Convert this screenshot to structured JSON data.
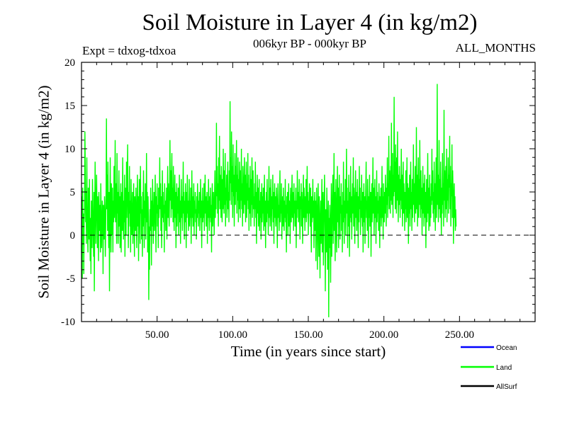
{
  "chart_data": {
    "type": "line",
    "title": "Soil Moisture in Layer 4 (in kg/m2)",
    "subtitle": "006kyr BP - 000kyr BP",
    "experiment": "Expt = tdxog-tdxoa",
    "period": "ALL_MONTHS",
    "xlabel": "Time (in years since start)",
    "ylabel": "Soil Moisture in Layer 4 (in kg/m2)",
    "xlim": [
      0,
      300
    ],
    "ylim": [
      -10,
      20
    ],
    "x_ticks": [
      {
        "value": 50,
        "label": "50.00"
      },
      {
        "value": 100,
        "label": "100.00"
      },
      {
        "value": 150,
        "label": "150.00"
      },
      {
        "value": 200,
        "label": "200.00"
      },
      {
        "value": 250,
        "label": "250.00"
      }
    ],
    "y_ticks": [
      {
        "value": -10,
        "label": "-10"
      },
      {
        "value": -5,
        "label": "-5"
      },
      {
        "value": 0,
        "label": "0"
      },
      {
        "value": 5,
        "label": "5"
      },
      {
        "value": 10,
        "label": "10"
      },
      {
        "value": 15,
        "label": "15"
      },
      {
        "value": 20,
        "label": "20"
      }
    ],
    "zero_line": true,
    "legend_position": "bottom-right",
    "series": [
      {
        "name": "Ocean",
        "color": "#0000ff",
        "values": []
      },
      {
        "name": "Land",
        "color": "#00ff00",
        "x_start": 0,
        "x_step": 0.25,
        "values": [
          -2.0,
          4.5,
          -5.0,
          5.5,
          -1.0,
          2.5,
          -4.5,
          1.5,
          3.0,
          12.0,
          8.0,
          1.5,
          5.0,
          -1.0,
          9.0,
          3.5,
          0.5,
          -2.0,
          5.5,
          2.0,
          -0.5,
          6.5,
          1.0,
          -3.0,
          2.0,
          -4.5,
          4.0,
          1.5,
          -1.5,
          6.5,
          3.0,
          0.0,
          -2.5,
          5.0,
          -6.5,
          2.0,
          8.5,
          4.0,
          -1.0,
          3.5,
          7.0,
          2.5,
          -1.5,
          4.5,
          1.0,
          -3.0,
          5.0,
          2.0,
          0.5,
          3.5,
          -2.0,
          6.0,
          2.5,
          -1.5,
          1.5,
          4.0,
          2.0,
          -4.5,
          3.5,
          1.0,
          -0.5,
          4.5,
          2.5,
          -2.5,
          1.0,
          5.5,
          13.5,
          3.0,
          7.0,
          0.5,
          8.5,
          2.0,
          -1.5,
          5.0,
          -6.5,
          2.5,
          9.0,
          1.0,
          -2.0,
          6.0,
          3.5,
          0.0,
          5.5,
          -2.0,
          4.0,
          1.5,
          8.0,
          2.0,
          4.0,
          11.0,
          1.5,
          6.0,
          3.5,
          -1.0,
          9.5,
          2.5,
          5.0,
          -1.0,
          3.0,
          7.5,
          1.0,
          4.5,
          -1.5,
          3.5,
          6.0,
          -2.0,
          2.5,
          5.0,
          0.5,
          9.0,
          3.0,
          -0.5,
          4.0,
          1.5,
          7.0,
          -2.5,
          3.5,
          5.5,
          0.0,
          8.5,
          2.0,
          6.0,
          10.5,
          3.0,
          -1.5,
          5.0,
          2.5,
          8.0,
          1.0,
          4.0,
          -2.0,
          6.5,
          3.5,
          0.0,
          2.0,
          5.0,
          -1.0,
          3.5,
          6.0,
          1.5,
          -2.5,
          4.5,
          2.0,
          0.5,
          5.5,
          2.0,
          -1.5,
          3.5,
          7.0,
          1.0,
          4.5,
          -3.0,
          2.0,
          6.5,
          3.0,
          -1.0,
          8.0,
          2.5,
          4.5,
          -0.5,
          3.0,
          -2.5,
          5.0,
          1.0,
          7.5,
          3.5,
          -1.5,
          4.0,
          2.0,
          6.0,
          -0.5,
          3.0,
          9.5,
          1.5,
          5.0,
          -2.0,
          4.5,
          2.0,
          -7.5,
          1.0,
          -4.0,
          3.0,
          0.5,
          5.5,
          2.5,
          -3.5,
          4.0,
          1.0,
          6.5,
          3.0,
          -1.0,
          2.0,
          5.0,
          0.5,
          3.5,
          7.0,
          1.5,
          -2.0,
          4.5,
          2.5,
          6.0,
          1.0,
          3.5,
          -1.5,
          5.5,
          2.0,
          4.0,
          9.0,
          3.0,
          6.0,
          0.5,
          4.5,
          -1.5,
          3.0,
          7.5,
          2.0,
          5.0,
          1.5,
          3.5,
          -2.0,
          6.0,
          2.5,
          4.0,
          0.5,
          3.0,
          5.5,
          -0.5,
          4.0,
          8.0,
          2.0,
          6.0,
          3.5,
          1.0,
          5.0,
          11.0,
          4.0,
          7.5,
          2.0,
          6.0,
          9.5,
          3.0,
          5.5,
          1.5,
          8.0,
          3.5,
          0.5,
          4.5,
          7.0,
          2.0,
          5.0,
          -1.5,
          3.0,
          6.0,
          1.0,
          4.5,
          2.5,
          5.5,
          0.0,
          3.0,
          7.0,
          1.5,
          4.0,
          -1.0,
          3.5,
          6.5,
          2.0,
          4.5,
          0.5,
          3.0,
          8.5,
          2.5,
          5.0,
          -0.5,
          4.0,
          1.5,
          6.0,
          3.0,
          -1.5,
          5.0,
          2.0,
          7.0,
          2.5,
          4.0,
          0.5,
          3.5,
          6.5,
          1.0,
          4.0,
          2.0,
          5.5,
          -1.0,
          3.0,
          7.5,
          2.0,
          4.5,
          1.0,
          3.5,
          6.0,
          0.0,
          4.0,
          2.5,
          5.0,
          1.5,
          3.0,
          -0.5,
          4.5,
          2.0,
          6.0,
          3.5,
          1.0,
          4.0,
          2.5,
          5.0,
          0.5,
          3.0,
          6.5,
          2.0,
          4.0,
          -1.5,
          3.0,
          5.5,
          1.5,
          4.0,
          2.0,
          6.0,
          0.5,
          3.5,
          7.0,
          2.5,
          4.5,
          1.0,
          3.0,
          5.0,
          -1.0,
          4.0,
          2.0,
          6.5,
          3.0,
          0.5,
          4.5,
          2.0,
          5.5,
          1.5,
          3.5,
          -2.0,
          4.0,
          6.0,
          1.0,
          3.5,
          5.0,
          2.5,
          0.0,
          4.5,
          7.5,
          2.0,
          5.0,
          3.0,
          13.0,
          4.5,
          8.0,
          2.5,
          6.0,
          1.0,
          9.0,
          4.0,
          11.5,
          3.0,
          7.0,
          5.5,
          2.0,
          8.0,
          4.5,
          1.5,
          6.5,
          3.0,
          10.0,
          5.0,
          2.5,
          7.5,
          3.5,
          9.5,
          1.0,
          5.5,
          4.0,
          7.0,
          2.0,
          6.0,
          8.5,
          3.0,
          5.0,
          1.5,
          7.5,
          4.0,
          15.5,
          6.0,
          9.0,
          3.5,
          12.0,
          5.0,
          8.0,
          2.0,
          10.5,
          4.5,
          7.0,
          1.0,
          6.0,
          9.5,
          3.5,
          8.0,
          5.0,
          11.0,
          2.5,
          7.0,
          4.0,
          9.0,
          1.5,
          6.5,
          3.0,
          8.5,
          5.5,
          2.0,
          7.5,
          4.0,
          10.0,
          3.0,
          6.0,
          1.0,
          8.0,
          4.5,
          2.5,
          6.5,
          9.0,
          3.5,
          7.0,
          1.5,
          5.0,
          8.5,
          2.0,
          6.0,
          4.0,
          9.5,
          3.0,
          7.0,
          0.5,
          5.5,
          2.5,
          8.0,
          4.0,
          1.0,
          6.5,
          3.5,
          9.0,
          2.0,
          5.5,
          7.5,
          3.0,
          4.5,
          1.0,
          6.0,
          3.0,
          8.5,
          2.0,
          5.0,
          -1.0,
          4.0,
          7.0,
          2.5,
          5.5,
          1.0,
          3.5,
          6.5,
          0.5,
          4.0,
          2.0,
          5.0,
          -0.5,
          3.5,
          6.0,
          1.5,
          4.5,
          2.5,
          5.5,
          0.5,
          3.0,
          7.0,
          1.0,
          4.0,
          -1.5,
          3.0,
          5.0,
          1.5,
          6.5,
          2.5,
          4.0,
          0.0,
          3.5,
          8.0,
          2.0,
          5.5,
          1.0,
          4.0,
          6.5,
          2.5,
          0.5,
          4.5,
          3.0,
          7.0,
          1.5,
          5.0,
          -1.0,
          3.5,
          6.0,
          2.0,
          4.5,
          1.0,
          3.0,
          5.5,
          2.5,
          -1.5,
          4.0,
          6.0,
          2.0,
          3.5,
          0.5,
          5.0,
          7.5,
          1.5,
          4.0,
          2.5,
          6.0,
          -0.5,
          3.0,
          4.5,
          1.0,
          5.5,
          3.0,
          0.5,
          4.0,
          2.0,
          6.5,
          1.5,
          3.5,
          -2.0,
          4.5,
          2.5,
          5.0,
          0.0,
          3.0,
          6.0,
          1.0,
          4.0,
          2.5,
          -1.0,
          5.5,
          3.0,
          1.5,
          4.5,
          7.0,
          2.0,
          5.0,
          3.5,
          0.5,
          6.0,
          2.5,
          4.0,
          1.0,
          3.0,
          5.5,
          -1.5,
          4.0,
          2.0,
          7.5,
          3.0,
          5.0,
          1.5,
          3.5,
          6.5,
          2.0,
          -0.5,
          4.5,
          3.0,
          6.0,
          1.0,
          5.0,
          2.5,
          -1.0,
          4.0,
          7.0,
          2.0,
          5.5,
          3.5,
          0.5,
          4.5,
          2.0,
          6.5,
          1.5,
          3.0,
          8.0,
          2.5,
          5.0,
          0.0,
          4.0,
          2.5,
          6.0,
          3.5,
          1.0,
          5.5,
          2.0,
          -2.0,
          4.5,
          1.5,
          3.5,
          6.5,
          2.0,
          4.0,
          -1.5,
          3.0,
          5.0,
          0.5,
          4.0,
          -3.0,
          2.5,
          5.5,
          1.0,
          -4.0,
          3.0,
          6.0,
          0.0,
          -2.5,
          4.5,
          2.0,
          -5.0,
          1.5,
          4.0,
          -1.0,
          3.5,
          6.5,
          -2.0,
          2.5,
          5.0,
          -3.5,
          1.0,
          4.5,
          7.0,
          0.5,
          -6.5,
          3.0,
          1.5,
          -2.0,
          5.5,
          2.5,
          -4.0,
          1.0,
          4.0,
          -9.5,
          2.0,
          -1.5,
          3.5,
          0.5,
          -5.5,
          2.0,
          6.0,
          -2.5,
          1.0,
          4.5,
          7.0,
          -1.0,
          3.0,
          9.5,
          0.5,
          5.0,
          -3.0,
          2.5,
          6.5,
          1.0,
          -2.0,
          4.0,
          8.0,
          1.5,
          5.5,
          -1.5,
          3.0,
          7.0,
          2.0,
          -0.5,
          4.5,
          2.5,
          6.0,
          0.5,
          3.5,
          -2.0,
          5.0,
          1.5,
          8.5,
          3.0,
          -1.0,
          4.0,
          2.0,
          6.5,
          0.0,
          3.5,
          10.0,
          2.5,
          5.5,
          -1.5,
          4.0,
          1.0,
          7.0,
          3.0,
          -2.5,
          5.0,
          2.0,
          8.0,
          1.5,
          4.5,
          -0.5,
          3.0,
          6.0,
          2.5,
          9.0,
          1.0,
          5.5,
          3.5,
          -1.0,
          4.0,
          7.5,
          2.0,
          5.0,
          0.5,
          3.0,
          6.5,
          2.5,
          -1.5,
          4.5,
          1.5,
          8.0,
          3.0,
          5.5,
          0.0,
          4.0,
          2.0,
          7.0,
          3.5,
          1.0,
          5.0,
          -2.0,
          3.0,
          6.0,
          1.5,
          4.5,
          -1.0,
          2.5,
          5.5,
          8.5,
          2.0,
          4.0,
          0.5,
          6.5,
          3.0,
          -1.5,
          4.5,
          2.0,
          7.0,
          1.0,
          3.5,
          5.0,
          -2.5,
          3.0,
          6.0,
          1.5,
          4.0,
          9.0,
          2.5,
          5.5,
          0.0,
          3.5,
          6.5,
          2.0,
          4.5,
          -1.0,
          3.0,
          7.5,
          1.5,
          5.0,
          2.5,
          4.0,
          0.5,
          6.0,
          3.0,
          -1.5,
          4.5,
          2.0,
          5.5,
          1.0,
          3.5,
          8.0,
          2.0,
          4.5,
          -0.5,
          6.0,
          3.0,
          1.5,
          5.0,
          2.5,
          7.0,
          4.0,
          1.0,
          5.5,
          3.5,
          9.0,
          2.0,
          6.0,
          4.5,
          11.5,
          3.0,
          7.5,
          5.0,
          2.5,
          8.0,
          4.0,
          13.0,
          3.5,
          6.5,
          9.5,
          2.0,
          7.0,
          4.5,
          16.0,
          5.0,
          8.5,
          3.0,
          10.5,
          6.0,
          2.5,
          9.0,
          4.0,
          12.0,
          5.5,
          1.5,
          7.0,
          3.5,
          8.0,
          5.0,
          2.0,
          6.5,
          4.0,
          10.0,
          3.0,
          7.0,
          1.0,
          5.5,
          8.5,
          2.5,
          6.0,
          4.0,
          0.5,
          5.0,
          3.0,
          7.5,
          1.5,
          4.5,
          9.0,
          2.0,
          6.0,
          3.5,
          -1.0,
          5.5,
          2.5,
          7.0,
          1.0,
          4.0,
          8.5,
          3.0,
          5.0,
          0.5,
          6.5,
          2.0,
          4.5,
          10.5,
          3.5,
          6.0,
          1.5,
          5.0,
          8.0,
          2.5,
          4.0,
          12.5,
          3.0,
          7.0,
          1.0,
          5.5,
          9.0,
          2.0,
          6.5,
          3.5,
          11.0,
          4.5,
          2.0,
          7.5,
          3.0,
          5.5,
          0.0,
          4.0,
          8.0,
          2.5,
          6.0,
          1.0,
          4.5,
          7.0,
          2.0,
          5.0,
          -1.5,
          3.5,
          6.5,
          1.5,
          4.0,
          9.5,
          2.5,
          5.5,
          0.5,
          3.0,
          7.0,
          1.0,
          4.5,
          2.0,
          6.0,
          3.5,
          10.0,
          4.0,
          7.5,
          2.5,
          5.0,
          1.5,
          8.5,
          3.0,
          6.0,
          0.5,
          4.5,
          9.0,
          2.0,
          5.5,
          17.5,
          3.5,
          7.0,
          1.5,
          5.0,
          11.0,
          3.0,
          6.5,
          2.0,
          8.5,
          4.0,
          0.0,
          5.5,
          2.5,
          9.5,
          3.5,
          6.0,
          1.0,
          14.5,
          4.0,
          7.5,
          2.0,
          5.0,
          8.0,
          3.0,
          10.0,
          1.5,
          6.5,
          4.0,
          9.0,
          2.5,
          7.0,
          5.5,
          11.5,
          3.0,
          8.0,
          1.0,
          6.0,
          4.5,
          10.5,
          2.0,
          7.5,
          5.0,
          -1.0,
          3.5,
          6.0,
          2.0,
          4.5,
          0.5,
          3.0,
          1.0
        ]
      },
      {
        "name": "AllSurf",
        "color": "#000000",
        "values": []
      }
    ]
  }
}
